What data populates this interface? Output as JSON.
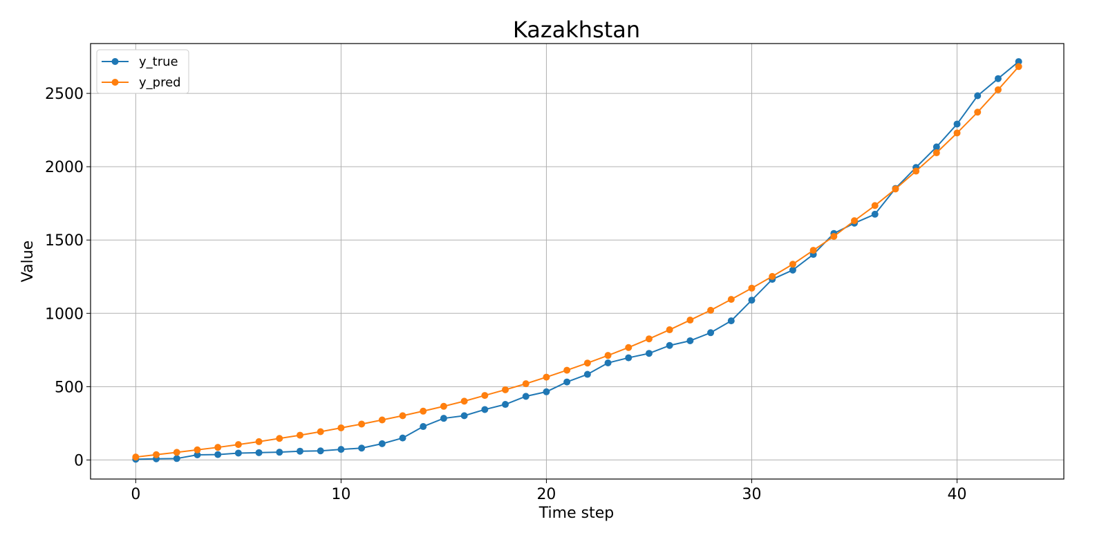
{
  "chart_data": {
    "type": "line",
    "title": "Kazakhstan",
    "xlabel": "Time step",
    "ylabel": "Value",
    "xlim": [
      -2.2,
      45.2
    ],
    "ylim": [
      -130,
      2840
    ],
    "xticks": [
      0,
      10,
      20,
      30,
      40
    ],
    "yticks": [
      0,
      500,
      1000,
      1500,
      2000,
      2500
    ],
    "grid": true,
    "legend": "top-left",
    "x": [
      0,
      1,
      2,
      3,
      4,
      5,
      6,
      7,
      8,
      9,
      10,
      11,
      12,
      13,
      14,
      15,
      16,
      17,
      18,
      19,
      20,
      21,
      22,
      23,
      24,
      25,
      26,
      27,
      28,
      29,
      30,
      31,
      32,
      33,
      34,
      35,
      36,
      37,
      38,
      39,
      40,
      41,
      42,
      43
    ],
    "series": [
      {
        "name": "y_true",
        "color": "#1f77b4",
        "values": [
          5,
          8,
          10,
          35,
          37,
          47,
          50,
          53,
          60,
          62,
          72,
          81,
          111,
          150,
          228,
          284,
          302,
          344,
          379,
          434,
          465,
          532,
          584,
          662,
          697,
          727,
          781,
          813,
          868,
          949,
          1090,
          1232,
          1295,
          1402,
          1545,
          1615,
          1676,
          1852,
          1995,
          2135,
          2291,
          2484,
          2601,
          2717
        ]
      },
      {
        "name": "y_pred",
        "color": "#ff7f0e",
        "values": [
          20,
          36,
          52,
          69,
          86,
          105,
          125,
          147,
          169,
          193,
          219,
          245,
          273,
          302,
          333,
          366,
          401,
          440,
          479,
          520,
          565,
          612,
          661,
          713,
          767,
          826,
          888,
          954,
          1021,
          1095,
          1172,
          1252,
          1335,
          1430,
          1525,
          1632,
          1735,
          1848,
          1970,
          2095,
          2230,
          2372,
          2525,
          2683
        ]
      }
    ]
  }
}
